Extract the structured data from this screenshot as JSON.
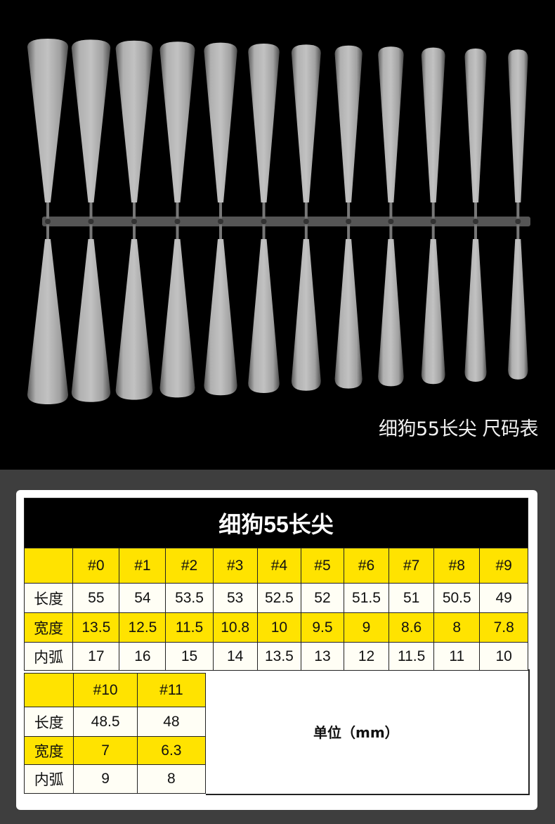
{
  "photo": {
    "caption": "细狗55长尖 尺码表",
    "nail_count": 12
  },
  "table": {
    "title": "细狗55长尖",
    "sizes": [
      "#0",
      "#1",
      "#2",
      "#3",
      "#4",
      "#5",
      "#6",
      "#7",
      "#8",
      "#9"
    ],
    "rows": [
      {
        "label": "长度",
        "values": [
          "55",
          "54",
          "53.5",
          "53",
          "52.5",
          "52",
          "51.5",
          "51",
          "50.5",
          "49"
        ]
      },
      {
        "label": "宽度",
        "values": [
          "13.5",
          "12.5",
          "11.5",
          "10.8",
          "10",
          "9.5",
          "9",
          "8.6",
          "8",
          "7.8"
        ]
      },
      {
        "label": "内弧",
        "values": [
          "17",
          "16",
          "15",
          "14",
          "13.5",
          "13",
          "12",
          "11.5",
          "11",
          "10"
        ]
      }
    ]
  },
  "sub_table": {
    "sizes": [
      "#10",
      "#11"
    ],
    "rows": [
      {
        "label": "长度",
        "values": [
          "48.5",
          "48"
        ]
      },
      {
        "label": "宽度",
        "values": [
          "7",
          "6.3"
        ]
      },
      {
        "label": "内弧",
        "values": [
          "9",
          "8"
        ]
      }
    ]
  },
  "unit": "单位（mm）",
  "colors": {
    "highlight": "#ffe300",
    "header_bg": "#000000",
    "panel_bg": "#3e3e3e"
  }
}
